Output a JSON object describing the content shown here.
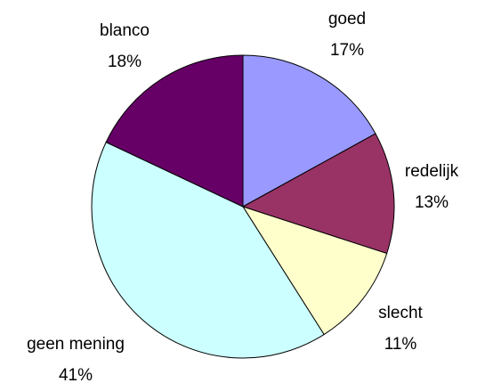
{
  "chart_data": {
    "type": "pie",
    "categories": [
      "goed",
      "redelijk",
      "slecht",
      "geen mening",
      "blanco"
    ],
    "values": [
      17,
      13,
      11,
      41,
      18
    ],
    "value_labels": [
      "17%",
      "13%",
      "11%",
      "41%",
      "18%"
    ],
    "colors": [
      "#9999ff",
      "#993366",
      "#ffffcc",
      "#ccffff",
      "#660066"
    ]
  }
}
